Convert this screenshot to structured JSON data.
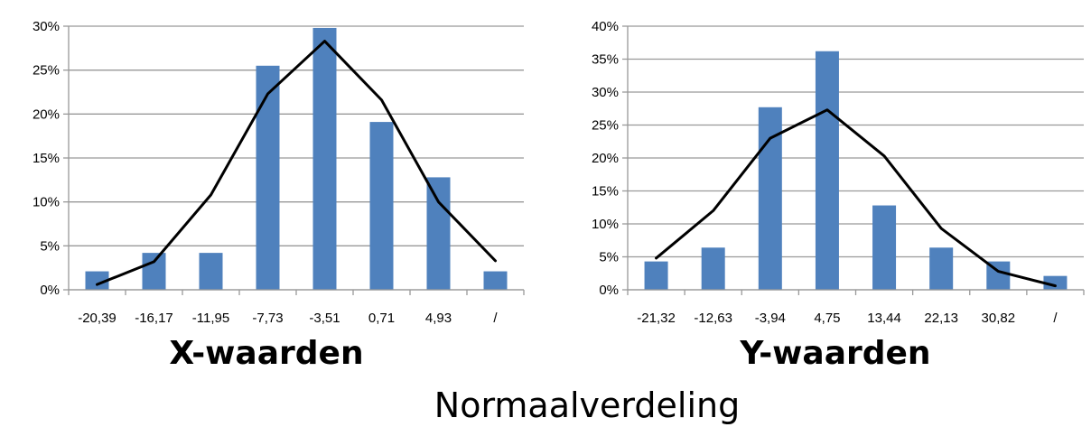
{
  "caption": "Normaalverdeling",
  "colors": {
    "bar": "#4f81bd",
    "line": "#000000",
    "grid": "#999999"
  },
  "chart_data": [
    {
      "type": "bar",
      "xlabel": "X-waarden",
      "ylabel": "",
      "categories": [
        "-20,39",
        "-16,17",
        "-11,95",
        "-7,73",
        "-3,51",
        "0,71",
        "4,93",
        "/"
      ],
      "ylim": [
        0,
        30
      ],
      "yticks": [
        "0%",
        "5%",
        "10%",
        "15%",
        "20%",
        "25%",
        "30%"
      ],
      "ytick_values": [
        0,
        5,
        10,
        15,
        20,
        25,
        30
      ],
      "grid": true,
      "legend": "none",
      "series": [
        {
          "type": "bar",
          "values": [
            2.1,
            4.2,
            4.2,
            25.5,
            29.8,
            19.1,
            12.8,
            2.1
          ]
        },
        {
          "type": "line",
          "values": [
            0.6,
            3.2,
            10.8,
            22.3,
            28.3,
            21.6,
            10.0,
            3.3
          ]
        }
      ]
    },
    {
      "type": "bar",
      "xlabel": "Y-waarden",
      "ylabel": "",
      "categories": [
        "-21,32",
        "-12,63",
        "-3,94",
        "4,75",
        "13,44",
        "22,13",
        "30,82",
        "/"
      ],
      "ylim": [
        0,
        40
      ],
      "yticks": [
        "0%",
        "5%",
        "10%",
        "15%",
        "20%",
        "25%",
        "30%",
        "35%",
        "40%"
      ],
      "ytick_values": [
        0,
        5,
        10,
        15,
        20,
        25,
        30,
        35,
        40
      ],
      "grid": true,
      "legend": "none",
      "series": [
        {
          "type": "bar",
          "values": [
            4.3,
            6.4,
            27.7,
            36.2,
            12.8,
            6.4,
            4.3,
            2.1
          ]
        },
        {
          "type": "line",
          "values": [
            4.8,
            12.0,
            23.0,
            27.3,
            20.3,
            9.3,
            2.8,
            0.6
          ]
        }
      ]
    }
  ]
}
